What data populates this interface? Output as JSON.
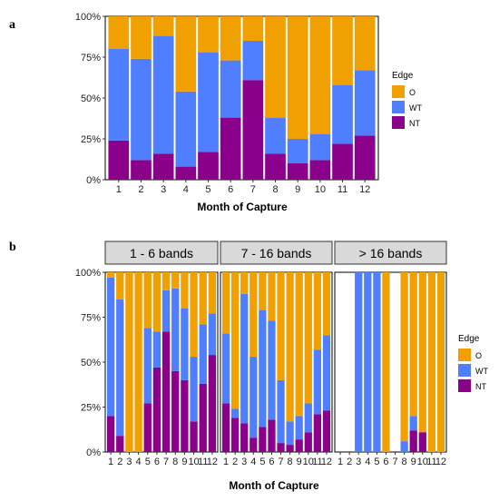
{
  "colors": {
    "O": "#F0A000",
    "WT": "#4F7FFF",
    "NT": "#8B008B"
  },
  "chart_data": [
    {
      "panel": "a",
      "type": "bar",
      "stacked": true,
      "xlabel": "Month of Capture",
      "ylabel": "",
      "ylim": [
        0,
        1
      ],
      "yticks": [
        "0%",
        "25%",
        "50%",
        "75%",
        "100%"
      ],
      "categories": [
        "1",
        "2",
        "3",
        "4",
        "5",
        "6",
        "7",
        "8",
        "9",
        "10",
        "11",
        "12"
      ],
      "legend": {
        "title": "Edge",
        "position": "right",
        "entries": [
          "O",
          "WT",
          "NT"
        ]
      },
      "series": [
        {
          "name": "NT",
          "values": [
            0.24,
            0.12,
            0.16,
            0.08,
            0.17,
            0.38,
            0.61,
            0.16,
            0.1,
            0.12,
            0.22,
            0.27
          ]
        },
        {
          "name": "WT",
          "values": [
            0.56,
            0.62,
            0.72,
            0.46,
            0.61,
            0.35,
            0.24,
            0.22,
            0.15,
            0.16,
            0.36,
            0.4
          ]
        },
        {
          "name": "O",
          "values": [
            0.2,
            0.26,
            0.12,
            0.46,
            0.22,
            0.27,
            0.15,
            0.62,
            0.75,
            0.72,
            0.42,
            0.33
          ]
        }
      ]
    },
    {
      "panel": "b",
      "type": "bar",
      "stacked": true,
      "xlabel": "Month of Capture",
      "ylabel": "",
      "ylim": [
        0,
        1
      ],
      "yticks": [
        "0%",
        "25%",
        "50%",
        "75%",
        "100%"
      ],
      "categories": [
        "1",
        "2",
        "3",
        "4",
        "5",
        "6",
        "7",
        "8",
        "9",
        "10",
        "11",
        "12"
      ],
      "legend": {
        "title": "Edge",
        "position": "right",
        "entries": [
          "O",
          "WT",
          "NT"
        ]
      },
      "facets": [
        {
          "label": "1 - 6 bands",
          "bars": [
            {
              "NT": 0.2,
              "WT": 0.77,
              "O": 0.03
            },
            {
              "NT": 0.09,
              "WT": 0.76,
              "O": 0.15
            },
            {
              "NT": 0.0,
              "WT": 0.0,
              "O": 1.0
            },
            {
              "NT": 0.0,
              "WT": 0.0,
              "O": 1.0
            },
            {
              "NT": 0.27,
              "WT": 0.42,
              "O": 0.31
            },
            {
              "NT": 0.47,
              "WT": 0.2,
              "O": 0.33
            },
            {
              "NT": 0.67,
              "WT": 0.23,
              "O": 0.1
            },
            {
              "NT": 0.45,
              "WT": 0.46,
              "O": 0.09
            },
            {
              "NT": 0.4,
              "WT": 0.4,
              "O": 0.2
            },
            {
              "NT": 0.17,
              "WT": 0.36,
              "O": 0.47
            },
            {
              "NT": 0.38,
              "WT": 0.33,
              "O": 0.29
            },
            {
              "NT": 0.54,
              "WT": 0.23,
              "O": 0.23
            }
          ]
        },
        {
          "label": "7 - 16 bands",
          "bars": [
            {
              "NT": 0.27,
              "WT": 0.39,
              "O": 0.34
            },
            {
              "NT": 0.19,
              "WT": 0.05,
              "O": 0.76
            },
            {
              "NT": 0.16,
              "WT": 0.72,
              "O": 0.12
            },
            {
              "NT": 0.08,
              "WT": 0.45,
              "O": 0.47
            },
            {
              "NT": 0.14,
              "WT": 0.65,
              "O": 0.21
            },
            {
              "NT": 0.18,
              "WT": 0.55,
              "O": 0.27
            },
            {
              "NT": 0.05,
              "WT": 0.35,
              "O": 0.6
            },
            {
              "NT": 0.04,
              "WT": 0.13,
              "O": 0.83
            },
            {
              "NT": 0.07,
              "WT": 0.13,
              "O": 0.8
            },
            {
              "NT": 0.11,
              "WT": 0.16,
              "O": 0.73
            },
            {
              "NT": 0.21,
              "WT": 0.36,
              "O": 0.43
            },
            {
              "NT": 0.23,
              "WT": 0.42,
              "O": 0.35
            }
          ]
        },
        {
          "label": "> 16 bands",
          "bars": [
            null,
            null,
            {
              "NT": 0.0,
              "WT": 1.0,
              "O": 0.0
            },
            {
              "NT": 0.0,
              "WT": 1.0,
              "O": 0.0
            },
            {
              "NT": 0.0,
              "WT": 1.0,
              "O": 0.0
            },
            {
              "NT": 0.0,
              "WT": 0.0,
              "O": 1.0
            },
            null,
            {
              "NT": 0.0,
              "WT": 0.06,
              "O": 0.94
            },
            {
              "NT": 0.12,
              "WT": 0.08,
              "O": 0.8
            },
            {
              "NT": 0.11,
              "WT": 0.0,
              "O": 0.89
            },
            {
              "NT": 0.0,
              "WT": 0.0,
              "O": 1.0
            },
            {
              "NT": 0.0,
              "WT": 0.0,
              "O": 1.0
            }
          ]
        }
      ]
    }
  ]
}
